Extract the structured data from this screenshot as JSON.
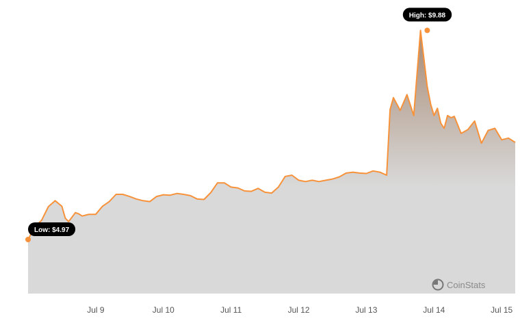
{
  "chart_data": {
    "type": "area",
    "x_tick_labels": [
      "Jul 9",
      "Jul 10",
      "Jul 11",
      "Jul 12",
      "Jul 13",
      "Jul 14",
      "Jul 15"
    ],
    "x_range": [
      0,
      7.2
    ],
    "ylim": [
      3.7,
      10.4
    ],
    "grid": false,
    "x": [
      0.0,
      0.1,
      0.2,
      0.3,
      0.4,
      0.5,
      0.55,
      0.6,
      0.7,
      0.75,
      0.8,
      0.9,
      1.0,
      1.1,
      1.2,
      1.3,
      1.4,
      1.5,
      1.6,
      1.7,
      1.8,
      1.9,
      2.0,
      2.1,
      2.2,
      2.3,
      2.4,
      2.5,
      2.6,
      2.7,
      2.8,
      2.9,
      3.0,
      3.1,
      3.2,
      3.3,
      3.4,
      3.5,
      3.6,
      3.7,
      3.8,
      3.9,
      4.0,
      4.1,
      4.2,
      4.3,
      4.4,
      4.5,
      4.6,
      4.7,
      4.8,
      4.9,
      5.0,
      5.1,
      5.2,
      5.3,
      5.35,
      5.4,
      5.5,
      5.6,
      5.7,
      5.8,
      5.9,
      5.95,
      6.0,
      6.05,
      6.1,
      6.15,
      6.2,
      6.25,
      6.3,
      6.4,
      6.5,
      6.6,
      6.7,
      6.8,
      6.9,
      7.0,
      7.1,
      7.2
    ],
    "values": [
      4.97,
      5.27,
      5.42,
      5.74,
      5.88,
      5.75,
      5.47,
      5.39,
      5.6,
      5.57,
      5.52,
      5.56,
      5.56,
      5.75,
      5.86,
      6.03,
      6.03,
      5.98,
      5.92,
      5.88,
      5.86,
      5.98,
      6.02,
      6.01,
      6.05,
      6.03,
      6.0,
      5.92,
      5.91,
      6.07,
      6.3,
      6.3,
      6.2,
      6.18,
      6.11,
      6.1,
      6.17,
      6.08,
      6.06,
      6.2,
      6.45,
      6.48,
      6.36,
      6.33,
      6.36,
      6.33,
      6.36,
      6.39,
      6.44,
      6.53,
      6.55,
      6.53,
      6.52,
      6.58,
      6.55,
      6.48,
      8.02,
      8.3,
      8.0,
      8.37,
      7.88,
      9.88,
      8.56,
      8.15,
      7.88,
      8.05,
      7.7,
      7.58,
      7.88,
      7.83,
      7.86,
      7.46,
      7.55,
      7.75,
      7.23,
      7.53,
      7.58,
      7.31,
      7.35,
      7.25
    ],
    "annotations": [
      {
        "label": "High: $9.88",
        "x": 5.9,
        "y": 9.88
      },
      {
        "label": "Low: $4.97",
        "x": 0.0,
        "y": 4.97
      }
    ],
    "colors": {
      "line": "#f7923a",
      "area_top": "#a88a74",
      "area_bottom": "#d9d9d9",
      "pill": "#000000"
    }
  },
  "watermark": {
    "icon": "coinstats-logo-icon",
    "text": "CoinStats"
  }
}
